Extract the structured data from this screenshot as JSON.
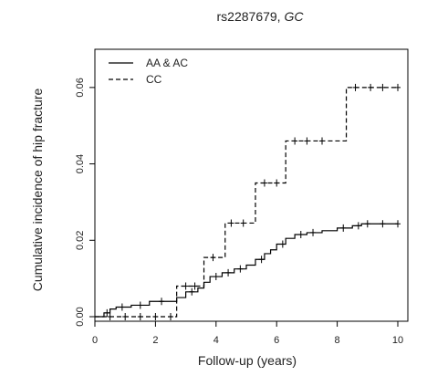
{
  "chart_data": {
    "type": "line",
    "title_main": "rs2287679, ",
    "title_italic": "GC",
    "xlabel": "Follow-up (years)",
    "ylabel": "Cumulative incidence of hip fracture",
    "xlim": [
      0,
      10
    ],
    "ylim": [
      0,
      0.07
    ],
    "x_ticks": [
      "0",
      "2",
      "4",
      "6",
      "8",
      "10"
    ],
    "y_ticks": [
      "0.00",
      "0.02",
      "0.04",
      "0.06"
    ],
    "grid": false,
    "legend_position": "top-left",
    "series": [
      {
        "name": "AA & AC",
        "line_style": "solid",
        "color": "#000000",
        "steps": [
          [
            0,
            0.0
          ],
          [
            0.3,
            0.001
          ],
          [
            0.5,
            0.002
          ],
          [
            0.7,
            0.0025
          ],
          [
            1.2,
            0.003
          ],
          [
            1.8,
            0.004
          ],
          [
            2.7,
            0.005
          ],
          [
            3.0,
            0.0065
          ],
          [
            3.4,
            0.0075
          ],
          [
            3.6,
            0.009
          ],
          [
            3.8,
            0.0105
          ],
          [
            4.2,
            0.0115
          ],
          [
            4.6,
            0.0125
          ],
          [
            5.0,
            0.0135
          ],
          [
            5.3,
            0.015
          ],
          [
            5.6,
            0.0165
          ],
          [
            5.8,
            0.0175
          ],
          [
            6.0,
            0.019
          ],
          [
            6.3,
            0.0205
          ],
          [
            6.6,
            0.0215
          ],
          [
            7.0,
            0.022
          ],
          [
            7.5,
            0.0225
          ],
          [
            8.0,
            0.0232
          ],
          [
            8.5,
            0.0238
          ],
          [
            8.8,
            0.0243
          ],
          [
            10.0,
            0.0243
          ]
        ],
        "censored": [
          [
            0.4,
            0.001
          ],
          [
            0.9,
            0.0025
          ],
          [
            1.5,
            0.003
          ],
          [
            2.2,
            0.004
          ],
          [
            3.2,
            0.0065
          ],
          [
            4.0,
            0.0105
          ],
          [
            4.4,
            0.0115
          ],
          [
            4.8,
            0.0125
          ],
          [
            5.5,
            0.015
          ],
          [
            6.2,
            0.019
          ],
          [
            6.8,
            0.0215
          ],
          [
            7.2,
            0.022
          ],
          [
            8.2,
            0.0232
          ],
          [
            8.7,
            0.0238
          ],
          [
            9.0,
            0.0243
          ],
          [
            9.5,
            0.0243
          ],
          [
            10.0,
            0.0243
          ]
        ]
      },
      {
        "name": "CC",
        "line_style": "dashed",
        "color": "#000000",
        "steps": [
          [
            0,
            0.0
          ],
          [
            2.7,
            0.0
          ],
          [
            2.7,
            0.008
          ],
          [
            3.6,
            0.008
          ],
          [
            3.6,
            0.0155
          ],
          [
            4.3,
            0.0155
          ],
          [
            4.3,
            0.0245
          ],
          [
            5.3,
            0.0245
          ],
          [
            5.3,
            0.035
          ],
          [
            6.3,
            0.035
          ],
          [
            6.3,
            0.046
          ],
          [
            8.3,
            0.046
          ],
          [
            8.3,
            0.06
          ],
          [
            10.0,
            0.06
          ]
        ],
        "censored": [
          [
            0.5,
            0.0
          ],
          [
            1.0,
            0.0
          ],
          [
            1.5,
            0.0
          ],
          [
            2.0,
            0.0
          ],
          [
            2.5,
            0.0
          ],
          [
            3.0,
            0.008
          ],
          [
            3.3,
            0.008
          ],
          [
            3.9,
            0.0155
          ],
          [
            4.5,
            0.0245
          ],
          [
            4.9,
            0.0245
          ],
          [
            5.6,
            0.035
          ],
          [
            6.0,
            0.035
          ],
          [
            6.6,
            0.046
          ],
          [
            7.0,
            0.046
          ],
          [
            7.5,
            0.046
          ],
          [
            8.6,
            0.06
          ],
          [
            9.1,
            0.06
          ],
          [
            9.5,
            0.06
          ],
          [
            10.0,
            0.06
          ]
        ]
      }
    ]
  }
}
